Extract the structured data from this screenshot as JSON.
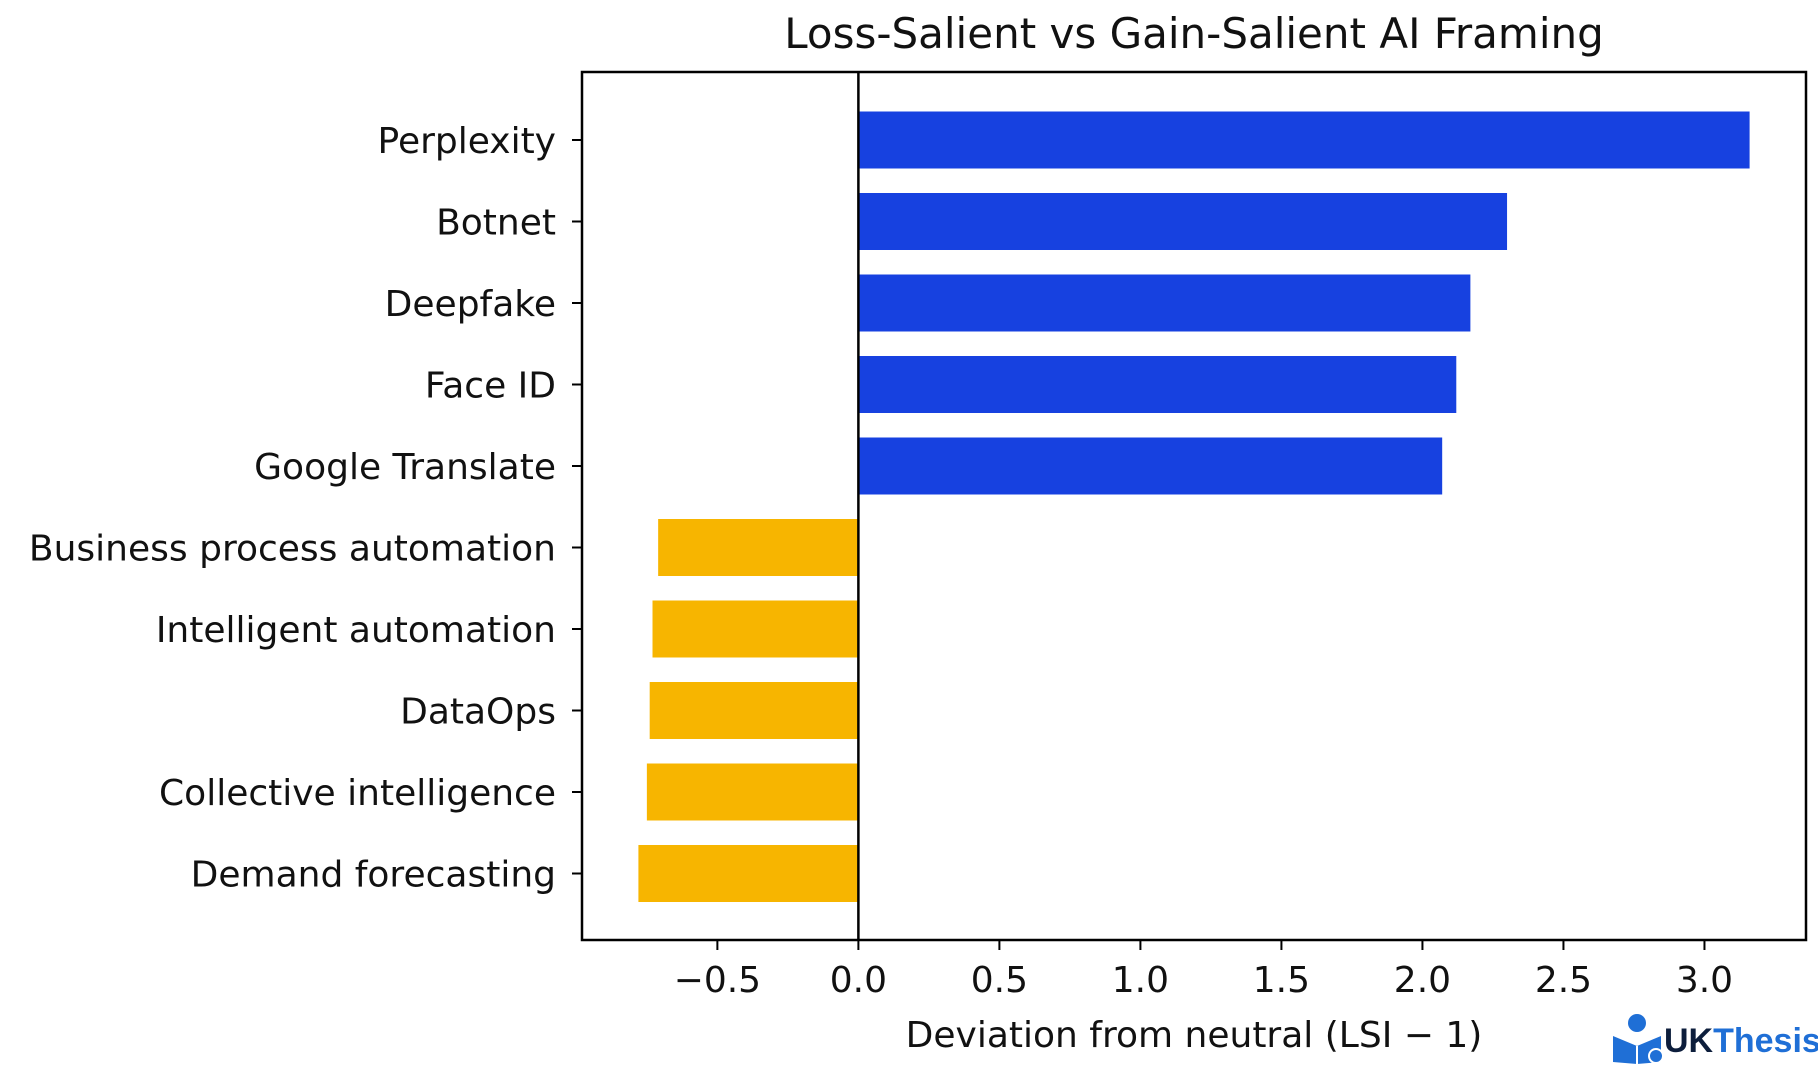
{
  "chart_data": {
    "type": "bar",
    "orientation": "horizontal",
    "title": "Loss-Salient vs Gain-Salient AI Framing",
    "xlabel": "Deviation from neutral (LSI − 1)",
    "ylabel": "",
    "categories": [
      "Perplexity",
      "Botnet",
      "Deepfake",
      "Face ID",
      "Google Translate",
      "Business process automation",
      "Intelligent automation",
      "DataOps",
      "Collective intelligence",
      "Demand forecasting"
    ],
    "values": [
      3.16,
      2.3,
      2.17,
      2.12,
      2.07,
      -0.71,
      -0.73,
      -0.74,
      -0.75,
      -0.78
    ],
    "bar_colors": [
      "#1741e0",
      "#1741e0",
      "#1741e0",
      "#1741e0",
      "#1741e0",
      "#f7b500",
      "#f7b500",
      "#f7b500",
      "#f7b500",
      "#f7b500"
    ],
    "xlim": [
      -0.98,
      3.36
    ],
    "xticks": [
      -0.5,
      0.0,
      0.5,
      1.0,
      1.5,
      2.0,
      2.5,
      3.0
    ],
    "xtick_labels": [
      "−0.5",
      "0.0",
      "0.5",
      "1.0",
      "1.5",
      "2.0",
      "2.5",
      "3.0"
    ],
    "zero_line": true,
    "grid": false,
    "legend": "none"
  },
  "logo": {
    "text_uk": "UK",
    "text_thesis": "Thesis",
    "color_uk": "#0d1e3c",
    "color_thesis": "#1f6fd6",
    "icon": "graduate-book-icon"
  }
}
